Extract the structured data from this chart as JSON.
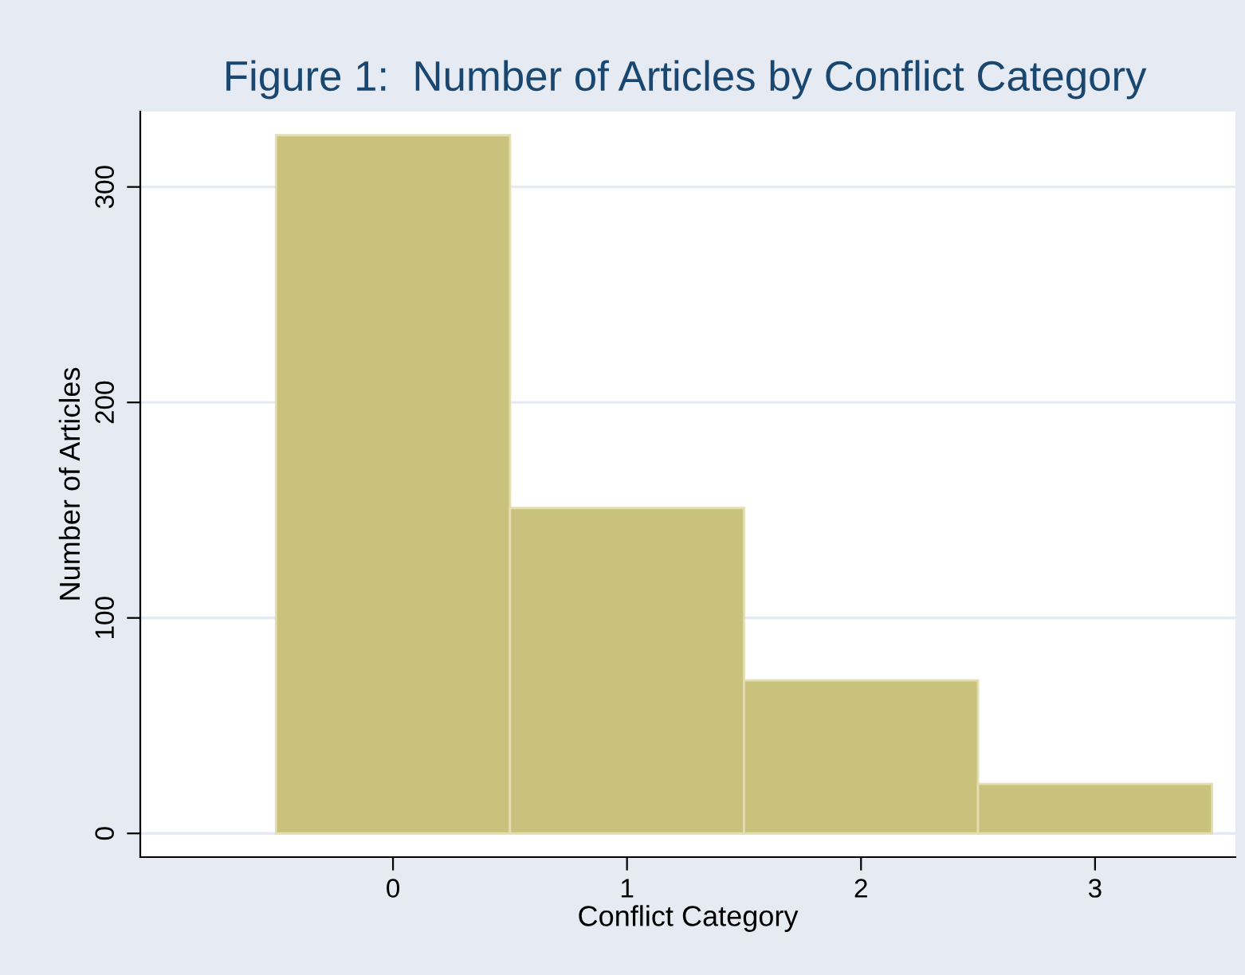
{
  "chart_data": {
    "type": "histogram",
    "title": "Figure 1:  Number of Articles by Conflict Category",
    "xlabel": "Conflict Category",
    "ylabel": "Number of Articles",
    "bins": [
      -0.5,
      0.5,
      1.5,
      2.5,
      3.5
    ],
    "values": [
      324,
      151,
      71,
      23
    ],
    "color": "#c9c27c",
    "xlim": [
      -1.08,
      3.6
    ],
    "xticks": [
      0,
      1,
      2,
      3
    ],
    "ylim": [
      -11,
      335
    ],
    "yticks": [
      0,
      100,
      200,
      300
    ],
    "grid": "y"
  }
}
